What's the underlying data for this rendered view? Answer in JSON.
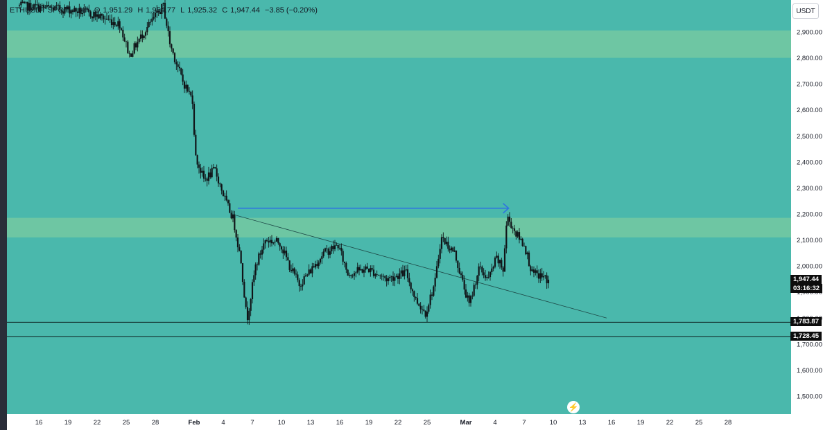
{
  "header": {
    "symbol": "ETHUSDT SPOT",
    "timeframe": "4h",
    "open": "1,951.29",
    "high": "1,954.77",
    "low": "1,925.32",
    "close": "1,947.44",
    "change": "−3.85 (−0.20%)"
  },
  "unit_button": "USDT",
  "colors": {
    "background": "#4ab8ac",
    "zone": "#72c8a2",
    "candle": "#101418",
    "arrow": "#2f74e0",
    "axis_bg": "#ffffff",
    "label_bg": "#0d0d0d"
  },
  "price_tags": {
    "current": "1,947.44",
    "countdown": "03:16:32",
    "support_1": "1,783.87",
    "support_2": "1,728.45"
  },
  "chart_data": {
    "type": "candlestick",
    "title": "",
    "ylim": [
      1450,
      3050
    ],
    "y_ticks": [
      2900,
      2800,
      2700,
      2600,
      2500,
      2400,
      2300,
      2200,
      2100,
      2000,
      1900,
      1800,
      1700,
      1600,
      1500
    ],
    "y_tick_labels": [
      "2,900.00",
      "2,800.00",
      "2,700.00",
      "2,600.00",
      "2,500.00",
      "2,400.00",
      "2,300.00",
      "2,200.00",
      "2,100.00",
      "2,000.00",
      "1,900.00",
      "1,800.00",
      "1,700.00",
      "1,600.00",
      "1,500.00"
    ],
    "x_ticks": [
      {
        "label": "16",
        "day": -16
      },
      {
        "label": "19",
        "day": -13
      },
      {
        "label": "22",
        "day": -10
      },
      {
        "label": "25",
        "day": -7
      },
      {
        "label": "28",
        "day": -4
      },
      {
        "label": "Feb",
        "day": 0
      },
      {
        "label": "4",
        "day": 3
      },
      {
        "label": "7",
        "day": 6
      },
      {
        "label": "10",
        "day": 9
      },
      {
        "label": "13",
        "day": 12
      },
      {
        "label": "16",
        "day": 15
      },
      {
        "label": "19",
        "day": 18
      },
      {
        "label": "22",
        "day": 21
      },
      {
        "label": "25",
        "day": 24
      },
      {
        "label": "Mar",
        "day": 28
      },
      {
        "label": "4",
        "day": 31
      },
      {
        "label": "7",
        "day": 34
      },
      {
        "label": "10",
        "day": 37
      },
      {
        "label": "13",
        "day": 40
      },
      {
        "label": "16",
        "day": 43
      },
      {
        "label": "19",
        "day": 46
      },
      {
        "label": "22",
        "day": 49
      },
      {
        "label": "25",
        "day": 52
      },
      {
        "label": "28",
        "day": 55
      }
    ],
    "zones": [
      {
        "from": 2800,
        "to": 2905
      },
      {
        "from": 2110,
        "to": 2185
      }
    ],
    "horizontal_lines": [
      1783.87,
      1728.45
    ],
    "trendline": {
      "from": [
        4.3,
        2195
      ],
      "to": [
        42.5,
        1800
      ]
    },
    "arrow": {
      "y": 2222,
      "from_day": 4.5,
      "to_day": 32.4
    },
    "last_price": 1947.44,
    "price_path": [
      [
        -18,
        3000
      ],
      [
        -12.5,
        2985
      ],
      [
        -10,
        2965
      ],
      [
        -7.5,
        2930
      ],
      [
        -6.5,
        2810
      ],
      [
        -5,
        2900
      ],
      [
        -4,
        2950
      ],
      [
        -3,
        3000
      ],
      [
        -2.3,
        2850
      ],
      [
        -1,
        2710
      ],
      [
        0,
        2640
      ],
      [
        0.3,
        2420
      ],
      [
        1.2,
        2330
      ],
      [
        2.3,
        2370
      ],
      [
        3.5,
        2240
      ],
      [
        4.2,
        2180
      ],
      [
        5,
        2020
      ],
      [
        5.6,
        1790
      ],
      [
        6.5,
        2000
      ],
      [
        7.5,
        2100
      ],
      [
        9,
        2090
      ],
      [
        10,
        2000
      ],
      [
        11,
        1930
      ],
      [
        12,
        1975
      ],
      [
        13.5,
        2050
      ],
      [
        15,
        2080
      ],
      [
        16,
        1970
      ],
      [
        18,
        1990
      ],
      [
        20,
        1950
      ],
      [
        22,
        1975
      ],
      [
        23,
        1870
      ],
      [
        24,
        1820
      ],
      [
        25,
        1940
      ],
      [
        25.6,
        2110
      ],
      [
        27,
        2050
      ],
      [
        27.8,
        1940
      ],
      [
        28.5,
        1850
      ],
      [
        29.5,
        1990
      ],
      [
        30.5,
        1950
      ],
      [
        31.3,
        2030
      ],
      [
        32,
        1985
      ],
      [
        32.4,
        2190
      ],
      [
        33.4,
        2120
      ],
      [
        34.2,
        2080
      ],
      [
        35,
        1970
      ],
      [
        36,
        1960
      ],
      [
        36.6,
        1945
      ]
    ]
  }
}
